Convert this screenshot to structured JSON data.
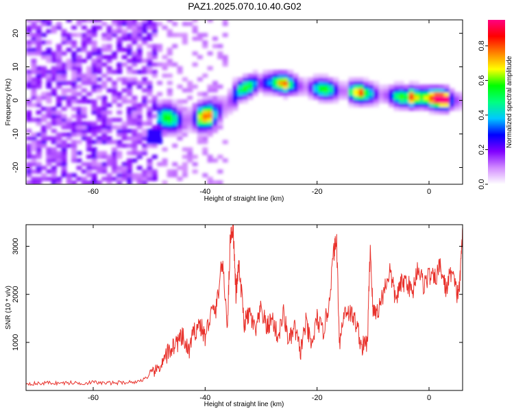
{
  "title": "PAZ1.2025.070.10.40.G02",
  "chart_data": [
    {
      "type": "heatmap",
      "xlabel": "Height of straight line (km)",
      "ylabel": "Frequency (Hz)",
      "xlim": [
        -72,
        6
      ],
      "ylim": [
        -25,
        24
      ],
      "x_ticks": [
        -60,
        -40,
        -20,
        0
      ],
      "y_ticks": [
        -20,
        -10,
        0,
        10,
        20
      ],
      "ridge": {
        "x": [
          -47,
          -44,
          -41,
          -38,
          -36,
          -34,
          -31,
          -28,
          -25,
          -22,
          -19,
          -16,
          -13,
          -10,
          -7,
          -4,
          -1,
          2,
          5
        ],
        "y": [
          -5,
          -6,
          -5,
          -4,
          -1,
          3,
          5,
          5.5,
          5,
          4,
          3.5,
          3,
          2.5,
          2,
          1.5,
          1,
          1,
          0.5,
          0
        ]
      },
      "colorbar": {
        "label": "Normalized spectral amplitude",
        "ticks": [
          0.0,
          0.2,
          0.4,
          0.6,
          0.8
        ],
        "range": [
          0,
          0.95
        ],
        "colors": [
          "#ffffff",
          "#d28cff",
          "#8000ff",
          "#0000ff",
          "#00c8ff",
          "#00ff80",
          "#00ff00",
          "#ffff00",
          "#ff8000",
          "#ff0000",
          "#ff0080"
        ]
      },
      "grid": false
    },
    {
      "type": "line",
      "xlabel": "Height of straight line (km)",
      "ylabel": "SNR (10 * v/v)",
      "xlim": [
        -72,
        6
      ],
      "ylim": [
        0,
        3450
      ],
      "x_ticks": [
        -60,
        -40,
        -20,
        0
      ],
      "y_ticks": [
        1000,
        2000,
        3000
      ],
      "color": "#e8302a",
      "series": [
        {
          "x": [
            -72,
            -70,
            -68,
            -66,
            -64,
            -62,
            -60,
            -58,
            -56,
            -54,
            -52,
            -50,
            -49,
            -48,
            -47,
            -46,
            -45,
            -44,
            -43,
            -42,
            -41,
            -40,
            -39,
            -38,
            -37,
            -36,
            -35.5,
            -35,
            -34.5,
            -34,
            -33,
            -32,
            -31,
            -30,
            -29,
            -28,
            -27,
            -26,
            -25,
            -24,
            -23,
            -22,
            -21,
            -20,
            -19,
            -18,
            -17,
            -16.5,
            -16,
            -15,
            -14,
            -13,
            -12,
            -11,
            -10.5,
            -10,
            -9,
            -8,
            -7,
            -6,
            -5,
            -4,
            -3,
            -2,
            -1,
            0,
            1,
            2,
            3,
            4,
            5,
            5.5,
            6
          ],
          "y": [
            150,
            140,
            160,
            150,
            160,
            150,
            170,
            150,
            160,
            170,
            180,
            300,
            400,
            500,
            700,
            900,
            1000,
            1100,
            800,
            1200,
            1400,
            1100,
            1600,
            1700,
            2700,
            1400,
            3200,
            3400,
            2000,
            2600,
            1400,
            1600,
            1200,
            1700,
            1300,
            1500,
            1100,
            1600,
            1000,
            1300,
            800,
            1400,
            900,
            1500,
            1200,
            1700,
            2900,
            3100,
            1000,
            1700,
            1600,
            1400,
            900,
            1000,
            3000,
            1600,
            1700,
            2100,
            2500,
            1900,
            2200,
            2300,
            2000,
            2600,
            2200,
            2400,
            2300,
            2600,
            2100,
            2500,
            2000,
            2200,
            3400
          ]
        }
      ],
      "grid": false
    }
  ]
}
